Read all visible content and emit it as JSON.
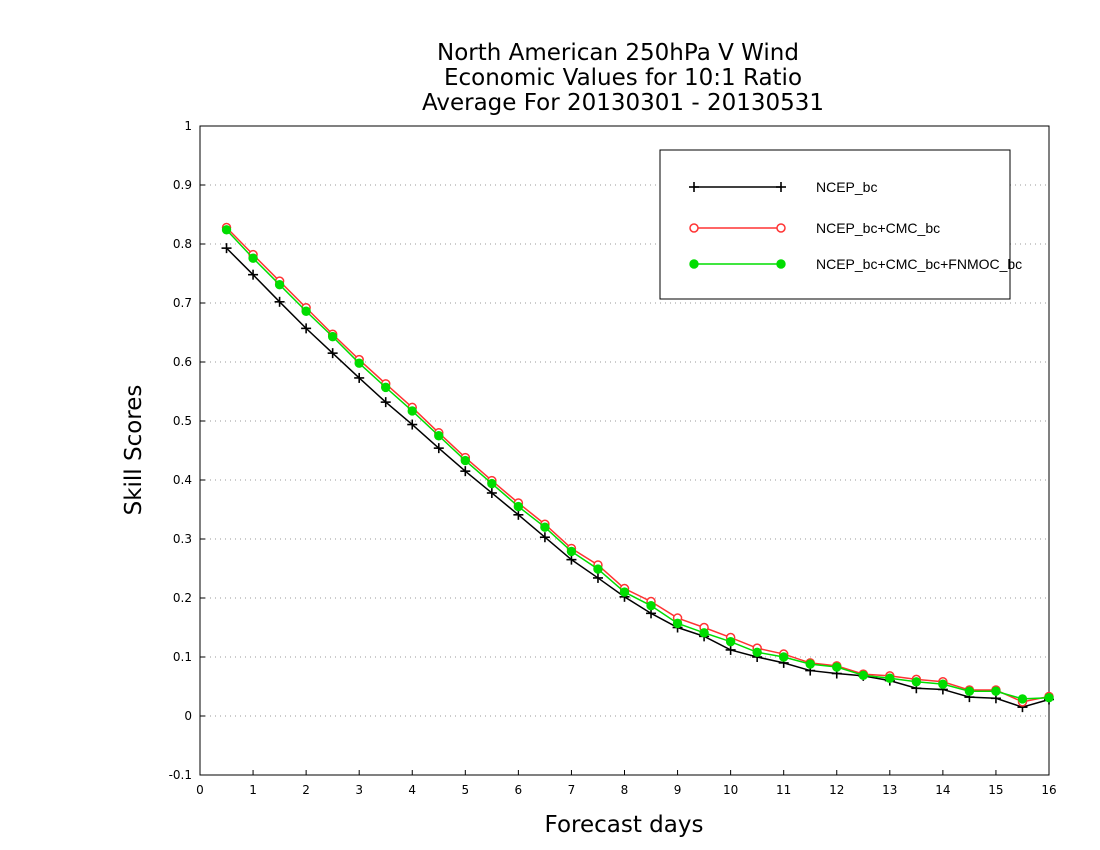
{
  "chart_data": {
    "type": "line",
    "title": [
      "North American 250hPa V Wind",
      "Economic Values for 10:1 Ratio",
      "Average For 20130301 - 20130531"
    ],
    "xlabel": "Forecast days",
    "ylabel": "Skill Scores",
    "xlim": [
      0,
      16
    ],
    "ylim": [
      -0.1,
      1
    ],
    "xticks": [
      "0",
      "1",
      "2",
      "3",
      "4",
      "5",
      "6",
      "7",
      "8",
      "9",
      "10",
      "11",
      "12",
      "13",
      "14",
      "15",
      "16"
    ],
    "yticks": [
      "-0.1",
      "0",
      "0.1",
      "0.2",
      "0.3",
      "0.4",
      "0.5",
      "0.6",
      "0.7",
      "0.8",
      "0.9",
      "1"
    ],
    "grid": true,
    "legend_position": "top-right",
    "x": [
      0.5,
      1,
      1.5,
      2,
      2.5,
      3,
      3.5,
      4,
      4.5,
      5,
      5.5,
      6,
      6.5,
      7,
      7.5,
      8,
      8.5,
      9,
      9.5,
      10,
      10.5,
      11,
      11.5,
      12,
      12.5,
      13,
      13.5,
      14,
      14.5,
      15,
      15.5,
      16
    ],
    "series": [
      {
        "name": "NCEP_bc",
        "color": "#000000",
        "marker": "plus",
        "values": [
          0.793,
          0.748,
          0.702,
          0.657,
          0.615,
          0.573,
          0.532,
          0.494,
          0.454,
          0.415,
          0.378,
          0.341,
          0.303,
          0.265,
          0.234,
          0.202,
          0.174,
          0.15,
          0.135,
          0.112,
          0.1,
          0.09,
          0.077,
          0.072,
          0.068,
          0.06,
          0.047,
          0.045,
          0.032,
          0.03,
          0.015,
          0.028
        ]
      },
      {
        "name": "NCEP_bc+CMC_bc",
        "color": "#ff3333",
        "marker": "open-circle",
        "values": [
          0.828,
          0.782,
          0.737,
          0.692,
          0.647,
          0.604,
          0.563,
          0.523,
          0.48,
          0.438,
          0.399,
          0.361,
          0.325,
          0.284,
          0.256,
          0.216,
          0.194,
          0.166,
          0.15,
          0.133,
          0.115,
          0.105,
          0.09,
          0.085,
          0.071,
          0.068,
          0.062,
          0.058,
          0.044,
          0.044,
          0.024,
          0.033
        ]
      },
      {
        "name": "NCEP_bc+CMC_bc+FNMOC_bc",
        "color": "#00dd00",
        "marker": "filled-circle",
        "values": [
          0.824,
          0.776,
          0.731,
          0.686,
          0.643,
          0.598,
          0.557,
          0.517,
          0.475,
          0.433,
          0.394,
          0.355,
          0.32,
          0.279,
          0.249,
          0.21,
          0.187,
          0.157,
          0.141,
          0.126,
          0.108,
          0.1,
          0.088,
          0.083,
          0.069,
          0.064,
          0.058,
          0.054,
          0.042,
          0.042,
          0.029,
          0.031
        ]
      }
    ]
  }
}
